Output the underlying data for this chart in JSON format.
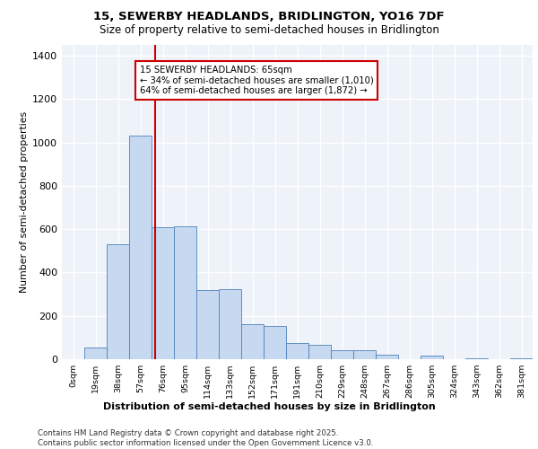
{
  "title_line1": "15, SEWERBY HEADLANDS, BRIDLINGTON, YO16 7DF",
  "title_line2": "Size of property relative to semi-detached houses in Bridlington",
  "xlabel": "Distribution of semi-detached houses by size in Bridlington",
  "ylabel": "Number of semi-detached properties",
  "annotation_line1": "15 SEWERBY HEADLANDS: 65sqm",
  "annotation_line2": "← 34% of semi-detached houses are smaller (1,010)",
  "annotation_line3": "64% of semi-detached houses are larger (1,872) →",
  "footer_line1": "Contains HM Land Registry data © Crown copyright and database right 2025.",
  "footer_line2": "Contains public sector information licensed under the Open Government Licence v3.0.",
  "bar_color": "#c6d9f0",
  "bar_edge_color": "#4f81bd",
  "background_color": "#eef2f9",
  "grid_color": "#ffffff",
  "vline_color": "#cc0000",
  "annotation_box_color": "#cc0000",
  "bin_labels": [
    "0sqm",
    "19sqm",
    "38sqm",
    "57sqm",
    "76sqm",
    "95sqm",
    "114sqm",
    "133sqm",
    "152sqm",
    "171sqm",
    "191sqm",
    "210sqm",
    "229sqm",
    "248sqm",
    "267sqm",
    "286sqm",
    "305sqm",
    "324sqm",
    "343sqm",
    "362sqm",
    "381sqm"
  ],
  "bar_values": [
    0,
    55,
    530,
    1030,
    610,
    615,
    320,
    325,
    160,
    155,
    75,
    65,
    40,
    40,
    20,
    0,
    15,
    0,
    5,
    0,
    5
  ],
  "property_bin_index": 3,
  "vline_x_offset": 0.65,
  "ylim": [
    0,
    1450
  ],
  "yticks": [
    0,
    200,
    400,
    600,
    800,
    1000,
    1200,
    1400
  ]
}
